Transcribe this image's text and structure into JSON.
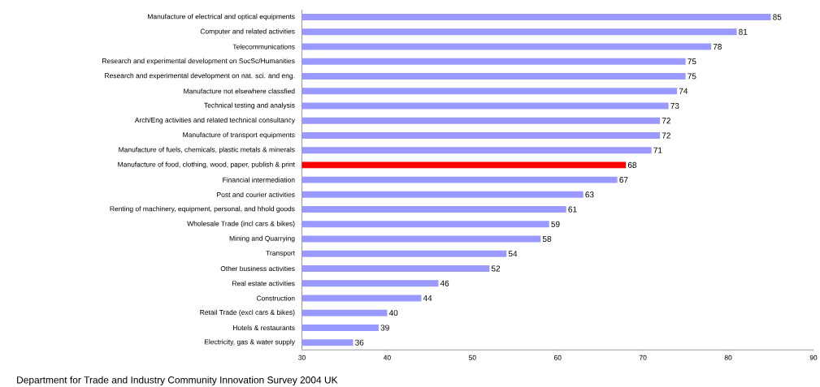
{
  "chart_data": {
    "type": "bar",
    "orientation": "horizontal",
    "categories": [
      "Manufacture of electrical and optical equipments",
      "Computer and related activities",
      "Telecommunications",
      "Research and experimental development on SocSc/Humanities",
      "Research and experimental development on nat. sci. and eng.",
      "Manufacture not elsewhere classfied",
      "Technical testing and analysis",
      "Arch/Eng activities and related technical consultancy",
      "Manufacture of transport equipments",
      "Manufacture of fuels, chemicals, plastic metals & minerals",
      "Manufacture of food, clothing, wood, paper, publish & print",
      "Financial intermediation",
      "Post and courier activities",
      "Renting of machinery, equipment, personal, and hhold goods",
      "Wholesale Trade (incl cars & bikes)",
      "Mining and Quarrying",
      "Transport",
      "Other business activities",
      "Real estate activities",
      "Construction",
      "Retail Trade (excl cars & bikes)",
      "Hotels & restaurants",
      "Electricity, gas & water supply"
    ],
    "values": [
      85,
      81,
      78,
      75,
      75,
      74,
      73,
      72,
      72,
      71,
      68,
      67,
      63,
      61,
      59,
      58,
      54,
      52,
      46,
      44,
      40,
      39,
      36
    ],
    "colors": [
      "#9999ff",
      "#9999ff",
      "#9999ff",
      "#9999ff",
      "#9999ff",
      "#9999ff",
      "#9999ff",
      "#9999ff",
      "#9999ff",
      "#9999ff",
      "#ff0000",
      "#9999ff",
      "#9999ff",
      "#9999ff",
      "#9999ff",
      "#9999ff",
      "#9999ff",
      "#9999ff",
      "#9999ff",
      "#9999ff",
      "#9999ff",
      "#9999ff",
      "#9999ff"
    ],
    "xlim": [
      30,
      90
    ],
    "xticks": [
      30,
      40,
      50,
      60,
      70,
      80,
      90
    ],
    "data_labels": true,
    "annotations": [
      "Department for Trade and Industry Community Innovation Survey 2004 UK"
    ]
  }
}
